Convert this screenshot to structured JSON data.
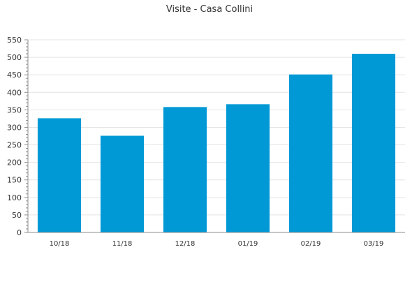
{
  "chart_data": {
    "type": "bar",
    "title": "Visite - Casa Collini",
    "categories": [
      "10/18",
      "11/18",
      "12/18",
      "01/19",
      "02/19",
      "03/19"
    ],
    "values": [
      326,
      276,
      358,
      366,
      451,
      510
    ],
    "ylim": [
      0,
      550
    ],
    "yticks": [
      0,
      50,
      100,
      150,
      200,
      250,
      300,
      350,
      400,
      450,
      500,
      550
    ],
    "ytick_labels": [
      "0",
      "50",
      "100",
      "150",
      "200",
      "250",
      "300",
      "350",
      "400",
      "450",
      "500",
      "550"
    ],
    "grid": true,
    "colors": {
      "bar": "#0099d6",
      "grid": "#e4e4e4",
      "axis": "#8c8c8c",
      "text": "#333333"
    }
  }
}
